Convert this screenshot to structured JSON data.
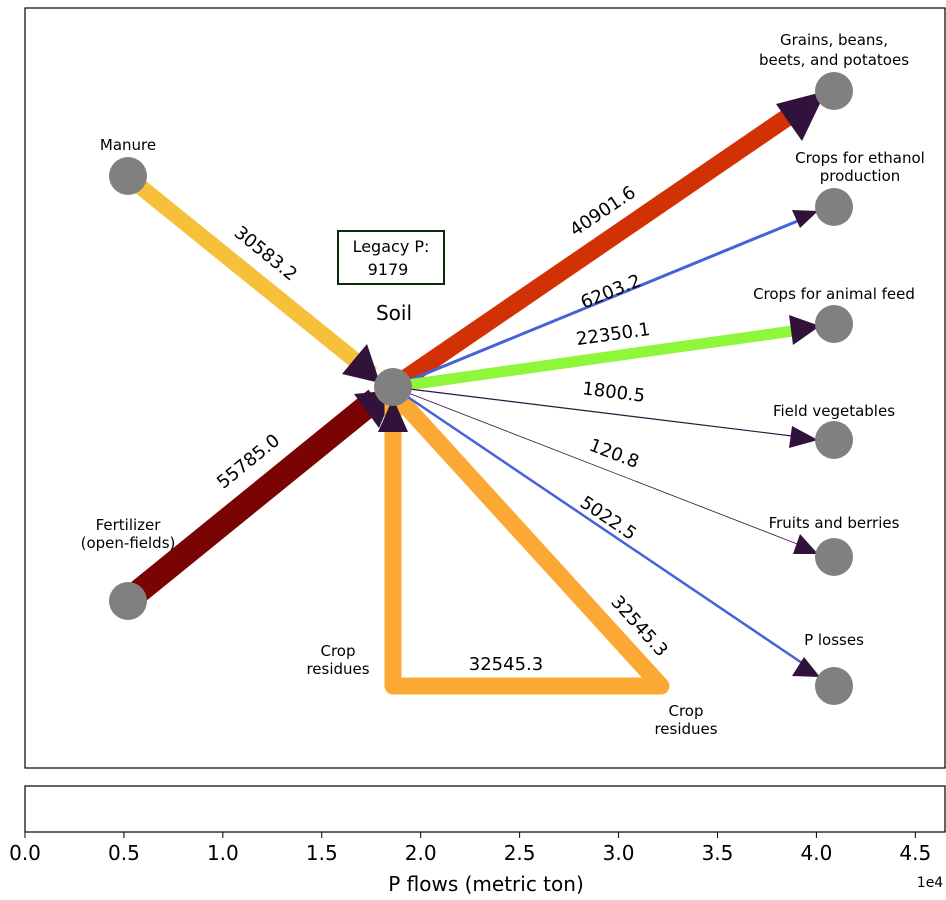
{
  "diagram": {
    "nodes": {
      "manure": {
        "label_lines": [
          "Manure"
        ]
      },
      "fertilizer": {
        "label_lines": [
          "Fertilizer",
          "(open-fields)"
        ]
      },
      "soil": {
        "label": "Soil"
      },
      "grains": {
        "label_lines": [
          "Grains, beans,",
          "beets, and potatoes"
        ]
      },
      "ethanol": {
        "label_lines": [
          "Crops for ethanol",
          "production"
        ]
      },
      "animal_feed": {
        "label_lines": [
          "Crops for animal feed"
        ]
      },
      "field_veg": {
        "label_lines": [
          "Field vegetables"
        ]
      },
      "fruits": {
        "label_lines": [
          "Fruits and berries"
        ]
      },
      "p_losses": {
        "label_lines": [
          "P losses"
        ]
      },
      "crop_residues_left": {
        "label_lines": [
          "Crop",
          "residues"
        ]
      },
      "crop_residues_right": {
        "label_lines": [
          "Crop",
          "residues"
        ]
      }
    },
    "legacy_box": {
      "line1": "Legacy P:",
      "line2": "9179"
    },
    "flows": [
      {
        "id": "manure-soil",
        "value": 30583.2,
        "label": "30583.2",
        "color": "#f7c03a"
      },
      {
        "id": "fertilizer-soil",
        "value": 55785.0,
        "label": "55785.0",
        "color": "#7a0403"
      },
      {
        "id": "soil-grains",
        "value": 40901.6,
        "label": "40901.6",
        "color": "#d23105"
      },
      {
        "id": "soil-ethanol",
        "value": 6203.2,
        "label": "6203.2",
        "color": "#4662d7"
      },
      {
        "id": "soil-animal-feed",
        "value": 22350.1,
        "label": "22350.1",
        "color": "#8ef73a"
      },
      {
        "id": "soil-field-veg",
        "value": 1800.5,
        "label": "1800.5",
        "color": "#30123b"
      },
      {
        "id": "soil-fruits",
        "value": 120.8,
        "label": "120.8",
        "color": "#30123b"
      },
      {
        "id": "soil-p-losses",
        "value": 5022.5,
        "label": "5022.5",
        "color": "#4662d7"
      },
      {
        "id": "crop-residues-diagonal",
        "value": 32545.3,
        "label": "32545.3",
        "color": "#fca834"
      },
      {
        "id": "crop-residues-bottom",
        "value": 32545.3,
        "label": "32545.3",
        "color": "#fca834"
      }
    ],
    "node_color": "#808080",
    "arrowhead_color": "#30123b"
  },
  "colorbar": {
    "xlabel": "P flows (metric ton)",
    "ticks": [
      "0.0",
      "0.5",
      "1.0",
      "1.5",
      "2.0",
      "2.5",
      "3.0",
      "3.5",
      "4.0",
      "4.5"
    ],
    "tick_values": [
      0,
      5000,
      10000,
      15000,
      20000,
      25000,
      30000,
      35000,
      40000,
      45000
    ],
    "range": [
      0,
      46500
    ],
    "offset_text": "1e4"
  }
}
